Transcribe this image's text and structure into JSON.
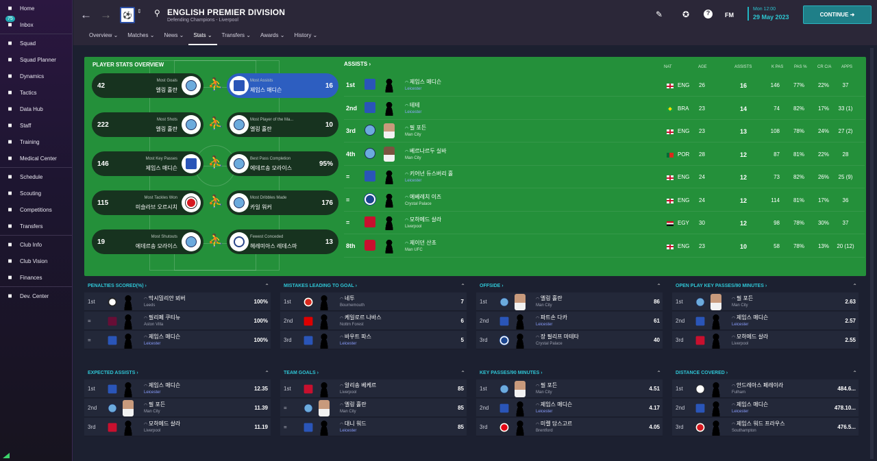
{
  "sidebar": {
    "inbox_badge": "75",
    "items": [
      {
        "label": "Home",
        "icon": "home-icon"
      },
      {
        "label": "Inbox",
        "icon": "inbox-icon"
      },
      {
        "label": "Squad",
        "icon": "shirt-icon"
      },
      {
        "label": "Squad Planner",
        "icon": "planner-icon"
      },
      {
        "label": "Dynamics",
        "icon": "dynamics-icon"
      },
      {
        "label": "Tactics",
        "icon": "tactics-icon"
      },
      {
        "label": "Data Hub",
        "icon": "data-hub-icon"
      },
      {
        "label": "Staff",
        "icon": "staff-icon"
      },
      {
        "label": "Training",
        "icon": "training-icon"
      },
      {
        "label": "Medical Center",
        "icon": "medical-icon"
      },
      {
        "label": "Schedule",
        "icon": "calendar-icon"
      },
      {
        "label": "Scouting",
        "icon": "scouting-icon"
      },
      {
        "label": "Competitions",
        "icon": "trophy-icon"
      },
      {
        "label": "Transfers",
        "icon": "transfers-icon"
      },
      {
        "label": "Club Info",
        "icon": "shield-icon"
      },
      {
        "label": "Club Vision",
        "icon": "vision-icon"
      },
      {
        "label": "Finances",
        "icon": "finances-icon"
      },
      {
        "label": "Dev. Center",
        "icon": "dev-center-icon"
      }
    ]
  },
  "header": {
    "title": "ENGLISH PREMIER DIVISION",
    "subtitle": "Defending Champions - Liverpool",
    "tabs": [
      "Overview ⌄",
      "Matches ⌄",
      "News ⌄",
      "Stats ⌄",
      "Transfers ⌄",
      "Awards ⌄",
      "History ⌄"
    ],
    "active_tab": "Stats ⌄",
    "fm_label": "FM",
    "date_day": "Mon 12:00",
    "date_main": "29 May 2023",
    "continue_label": "CONTINUE"
  },
  "overview": {
    "title": "PLAYER STATS OVERVIEW",
    "cards": [
      {
        "left": {
          "value": "42",
          "label": "Most Goals",
          "name": "엘링 홀란",
          "club": "mci"
        },
        "right": {
          "value": "16",
          "label": "Most Assists",
          "name": "제임스 매디슨",
          "club": "lei",
          "highlight": true
        }
      },
      {
        "left": {
          "value": "222",
          "label": "Most Shots",
          "name": "엘링 홀란",
          "club": "mci"
        },
        "right": {
          "value": "10",
          "label": "Most Player of the Ma...",
          "name": "엘링 홀란",
          "club": "mci"
        }
      },
      {
        "left": {
          "value": "146",
          "label": "Most Key Passes",
          "name": "제임스 매디슨",
          "club": "lei"
        },
        "right": {
          "value": "95%",
          "label": "Best Pass Completion",
          "name": "에데르송 모라이스",
          "club": "mci"
        }
      },
      {
        "left": {
          "value": "115",
          "label": "Most Tackles Won",
          "name": "미슬라브 오르시치",
          "club": "sou"
        },
        "right": {
          "value": "176",
          "label": "Most Dribbles Made",
          "name": "카일 워커",
          "club": "mci"
        }
      },
      {
        "left": {
          "value": "19",
          "label": "Most Shutouts",
          "name": "에데르송 모라이스",
          "club": "mci"
        },
        "right": {
          "value": "13",
          "label": "Fewest Conceded",
          "name": "헤레미아스 레데스마",
          "club": "eve"
        }
      }
    ]
  },
  "assists": {
    "title": "ASSISTS ›",
    "headers": {
      "nat": "NAT",
      "age": "AGE",
      "assists": "ASSISTS",
      "kpas": "K PAS",
      "pas": "PAS %",
      "cr": "CR C/A",
      "apps": "APPS"
    },
    "rows": [
      {
        "rank": "1st",
        "club": "lei",
        "name": "제임스 매디슨",
        "team": "Leicester",
        "flag": "eng",
        "nat": "ENG",
        "age": "26",
        "assists": "16",
        "kp": "146",
        "pas": "77%",
        "cr": "22%",
        "apps": "37"
      },
      {
        "rank": "2nd",
        "club": "lei",
        "name": "테테",
        "team": "Leicester",
        "flag": "bra",
        "nat": "BRA",
        "age": "23",
        "assists": "14",
        "kp": "74",
        "pas": "82%",
        "cr": "17%",
        "apps": "33 (1)"
      },
      {
        "rank": "3rd",
        "club": "mci",
        "name": "필 포든",
        "team": "Man City",
        "flag": "eng",
        "nat": "ENG",
        "age": "23",
        "assists": "13",
        "kp": "108",
        "pas": "78%",
        "cr": "24%",
        "apps": "27 (2)"
      },
      {
        "rank": "4th",
        "club": "mci",
        "name": "베르나르두 실바",
        "team": "Man City",
        "flag": "por",
        "nat": "POR",
        "age": "28",
        "assists": "12",
        "kp": "87",
        "pas": "81%",
        "cr": "22%",
        "apps": "28"
      },
      {
        "rank": "=",
        "club": "lei",
        "name": "키어넌 듀스버리 홀",
        "team": "Leicester",
        "flag": "eng",
        "nat": "ENG",
        "age": "24",
        "assists": "12",
        "kp": "73",
        "pas": "82%",
        "cr": "26%",
        "apps": "25 (9)"
      },
      {
        "rank": "=",
        "club": "cry",
        "name": "에베레치 이즈",
        "team": "Crystal Palace",
        "flag": "eng",
        "nat": "ENG",
        "age": "24",
        "assists": "12",
        "kp": "114",
        "pas": "81%",
        "cr": "17%",
        "apps": "36"
      },
      {
        "rank": "=",
        "club": "liv",
        "name": "모하메드 살라",
        "team": "Liverpool",
        "flag": "egy",
        "nat": "EGY",
        "age": "30",
        "assists": "12",
        "kp": "98",
        "pas": "78%",
        "cr": "30%",
        "apps": "37"
      },
      {
        "rank": "8th",
        "club": "mun",
        "name": "제이던 산초",
        "team": "Man UFC",
        "flag": "eng",
        "nat": "ENG",
        "age": "23",
        "assists": "10",
        "kp": "58",
        "pas": "78%",
        "cr": "13%",
        "apps": "20 (12)"
      }
    ]
  },
  "panels": [
    {
      "title": "PENALTIES SCORED(%) ›",
      "rows": [
        {
          "rank": "1st",
          "club": "lee",
          "name": "막시밀리안 뵈버",
          "team": "Leeds",
          "value": "100%"
        },
        {
          "rank": "=",
          "club": "ast",
          "name": "필리페 쿠티뉴",
          "team": "Aston Villa",
          "value": "100%"
        },
        {
          "rank": "=",
          "club": "lei",
          "name": "제임스 매디슨",
          "team": "Leicester",
          "value": "100%"
        }
      ]
    },
    {
      "title": "MISTAKES LEADING TO GOAL ›",
      "rows": [
        {
          "rank": "1st",
          "club": "bou",
          "name": "네투",
          "team": "Bournemouth",
          "value": "7"
        },
        {
          "rank": "2nd",
          "club": "not",
          "name": "케일로르 나바스",
          "team": "Nottm Forest",
          "value": "6"
        },
        {
          "rank": "3rd",
          "club": "lei",
          "name": "바우트 파스",
          "team": "Leicester",
          "value": "5"
        }
      ]
    },
    {
      "title": "OFFSIDE ›",
      "rows": [
        {
          "rank": "1st",
          "club": "mci",
          "name": "엘링 홀란",
          "team": "Man City",
          "value": "86"
        },
        {
          "rank": "2nd",
          "club": "lei",
          "name": "파트손 다카",
          "team": "Leicester",
          "value": "61"
        },
        {
          "rank": "3rd",
          "club": "cry",
          "name": "장 필리프 마테타",
          "team": "Crystal Palace",
          "value": "40"
        }
      ]
    },
    {
      "title": "OPEN PLAY KEY PASSES/90 MINUTES ›",
      "rows": [
        {
          "rank": "1st",
          "club": "mci",
          "name": "필 포든",
          "team": "Man City",
          "value": "2.63"
        },
        {
          "rank": "2nd",
          "club": "lei",
          "name": "제임스 매디슨",
          "team": "Leicester",
          "value": "2.57"
        },
        {
          "rank": "3rd",
          "club": "liv",
          "name": "모하메드 살라",
          "team": "Liverpool",
          "value": "2.55"
        }
      ]
    },
    {
      "title": "EXPECTED ASSISTS ›",
      "rows": [
        {
          "rank": "1st",
          "club": "lei",
          "name": "제임스 매디슨",
          "team": "Leicester",
          "value": "12.35"
        },
        {
          "rank": "2nd",
          "club": "mci",
          "name": "필 포든",
          "team": "Man City",
          "value": "11.39"
        },
        {
          "rank": "3rd",
          "club": "liv",
          "name": "모하메드 살라",
          "team": "Liverpool",
          "value": "11.19"
        }
      ]
    },
    {
      "title": "TEAM GOALS ›",
      "rows": [
        {
          "rank": "1st",
          "club": "liv",
          "name": "알리송 베케르",
          "team": "Liverpool",
          "value": "85"
        },
        {
          "rank": "=",
          "club": "mci",
          "name": "엘링 홀란",
          "team": "Man City",
          "value": "85"
        },
        {
          "rank": "=",
          "club": "lei",
          "name": "대니 워드",
          "team": "Leicester",
          "value": "85"
        }
      ]
    },
    {
      "title": "KEY PASSES/90 MINUTES ›",
      "rows": [
        {
          "rank": "1st",
          "club": "mci",
          "name": "필 포든",
          "team": "Man City",
          "value": "4.51"
        },
        {
          "rank": "2nd",
          "club": "lei",
          "name": "제임스 매디슨",
          "team": "Leicester",
          "value": "4.17"
        },
        {
          "rank": "3rd",
          "club": "bre",
          "name": "미켈 담스고르",
          "team": "Brentford",
          "value": "4.05"
        }
      ]
    },
    {
      "title": "DISTANCE COVERED ›",
      "rows": [
        {
          "rank": "1st",
          "club": "ful",
          "name": "안드레아스 페레이라",
          "team": "Fulham",
          "value": "484.6..."
        },
        {
          "rank": "2nd",
          "club": "lei",
          "name": "제임스 매디슨",
          "team": "Leicester",
          "value": "478.10..."
        },
        {
          "rank": "3rd",
          "club": "sou",
          "name": "제임스 워드 프라우스",
          "team": "Southampton",
          "value": "476.5..."
        }
      ]
    }
  ]
}
